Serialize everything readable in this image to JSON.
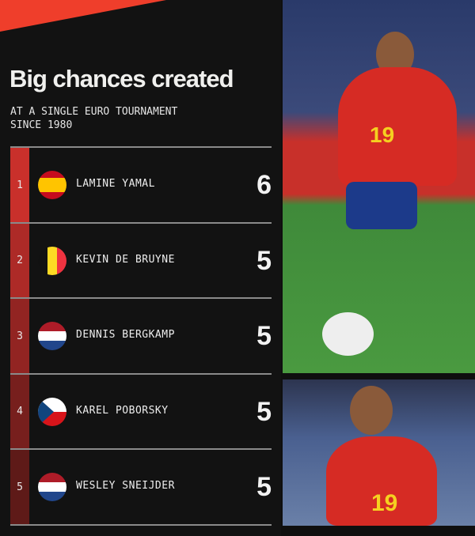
{
  "title": "Big chances created",
  "subtitle_line1": "AT A SINGLE EURO TOURNAMENT",
  "subtitle_line2": "SINCE 1980",
  "rows": [
    {
      "rank": "1",
      "name": "LAMINE YAMAL",
      "value": "6",
      "flag": "spain",
      "bar_color": "#c9302b"
    },
    {
      "rank": "2",
      "name": "KEVIN DE BRUYNE",
      "value": "5",
      "flag": "belgium",
      "bar_color": "#ad2a27"
    },
    {
      "rank": "3",
      "name": "DENNIS BERGKAMP",
      "value": "5",
      "flag": "netherlands",
      "bar_color": "#922422"
    },
    {
      "rank": "4",
      "name": "KAREL POBORSKY",
      "value": "5",
      "flag": "czech-republic",
      "bar_color": "#771f1d"
    },
    {
      "rank": "5",
      "name": "WESLEY SNEIJDER",
      "value": "5",
      "flag": "netherlands",
      "bar_color": "#5e1a18"
    }
  ],
  "photo_shirt_number": "19",
  "accent": "#ef3e2b"
}
